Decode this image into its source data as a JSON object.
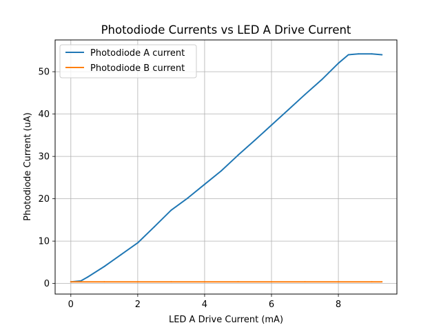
{
  "chart_data": {
    "type": "line",
    "title": "Photodiode Currents vs LED A Drive Current",
    "xlabel": "LED A Drive Current (mA)",
    "ylabel": "Photodiode Current (uA)",
    "xlim": [
      -0.47,
      9.75
    ],
    "ylim": [
      -2.5,
      57.5
    ],
    "xticks": [
      0,
      2,
      4,
      6,
      8
    ],
    "yticks": [
      0,
      10,
      20,
      30,
      40,
      50
    ],
    "grid": true,
    "legend_position": "top-left",
    "series": [
      {
        "name": "Photodiode A current",
        "color": "#1f77b4",
        "x": [
          0,
          0.3,
          0.5,
          1.0,
          1.5,
          2.0,
          2.5,
          3.0,
          3.5,
          4.0,
          4.5,
          5.0,
          5.5,
          6.0,
          6.5,
          7.0,
          7.5,
          8.0,
          8.3,
          8.6,
          9.0,
          9.3
        ],
        "y": [
          0.4,
          0.6,
          1.5,
          4.0,
          6.8,
          9.6,
          13.4,
          17.3,
          20.2,
          23.4,
          26.6,
          30.3,
          33.8,
          37.4,
          41.0,
          44.6,
          48.1,
          52.0,
          54.0,
          54.2,
          54.2,
          54.0
        ]
      },
      {
        "name": "Photodiode B current",
        "color": "#ff7f0e",
        "x": [
          0,
          1,
          2,
          3,
          4,
          5,
          6,
          7,
          8,
          9,
          9.3
        ],
        "y": [
          0.4,
          0.4,
          0.4,
          0.4,
          0.4,
          0.4,
          0.4,
          0.4,
          0.4,
          0.4,
          0.4
        ]
      }
    ]
  }
}
